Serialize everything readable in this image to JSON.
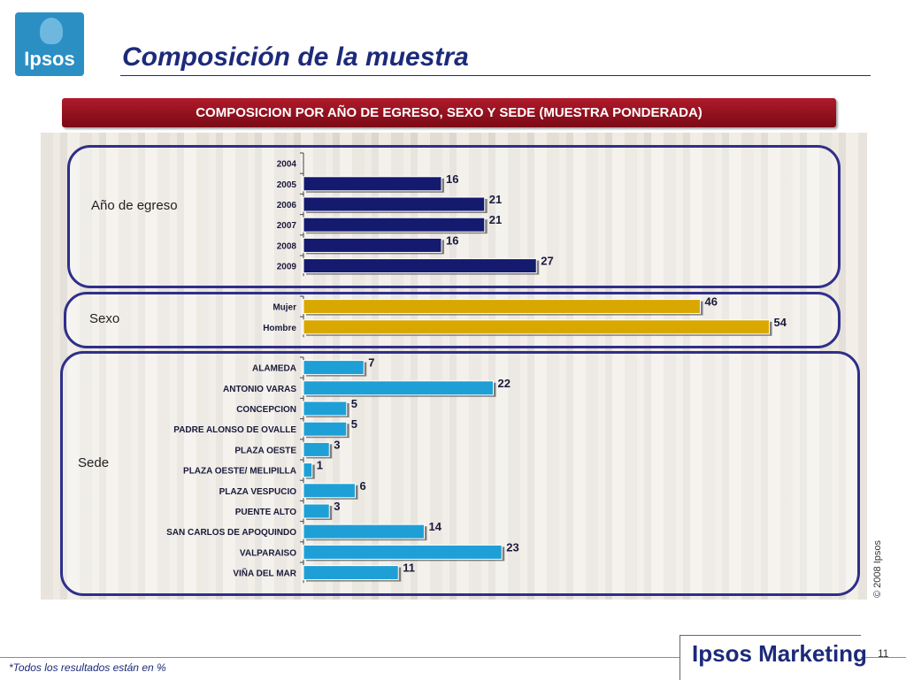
{
  "header": {
    "logo_text": "Ipsos",
    "title": "Composición de la muestra"
  },
  "banner": {
    "text": "COMPOSICION POR  AÑO DE EGRESO, SEXO Y SEDE (MUESTRA PONDERADA)",
    "color": "#9a1020"
  },
  "groups": [
    {
      "label": "Año de egreso"
    },
    {
      "label": "Sexo"
    },
    {
      "label": "Sede"
    }
  ],
  "chart_data": {
    "type": "bar",
    "orientation": "horizontal",
    "title": "COMPOSICION POR  AÑO DE EGRESO, SEXO Y SEDE (MUESTRA PONDERADA)",
    "xlim": [
      0,
      60
    ],
    "grid": false,
    "groups": [
      {
        "name": "Año de egreso",
        "color": "#141a6e",
        "categories": [
          "2004",
          "2005",
          "2006",
          "2007",
          "2008",
          "2009"
        ],
        "values": [
          null,
          16,
          21,
          21,
          16,
          27
        ]
      },
      {
        "name": "Sexo",
        "color": "#d9a800",
        "categories": [
          "Mujer",
          "Hombre"
        ],
        "values": [
          46,
          54
        ]
      },
      {
        "name": "Sede",
        "color": "#1ea0d6",
        "categories": [
          "ALAMEDA",
          "ANTONIO VARAS",
          "CONCEPCION",
          "PADRE ALONSO DE OVALLE",
          "PLAZA OESTE",
          "PLAZA OESTE/ MELIPILLA",
          "PLAZA VESPUCIO",
          "PUENTE ALTO",
          "SAN CARLOS DE APOQUINDO",
          "VALPARAISO",
          "VIÑA DEL MAR"
        ],
        "values": [
          7,
          22,
          5,
          5,
          3,
          1,
          6,
          3,
          14,
          23,
          11
        ]
      }
    ]
  },
  "footer": {
    "footnote": "*Todos los resultados están en %",
    "brand": "Ipsos Marketing",
    "page_number": "11",
    "copyright": "© 2008 Ipsos"
  }
}
